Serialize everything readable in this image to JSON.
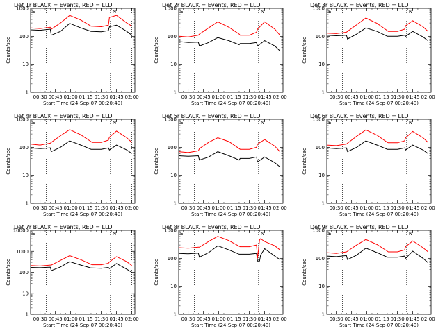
{
  "chart_data": [
    {
      "type": "line",
      "title": "Det 1r BLACK = Events, RED = LLD",
      "xlabel": "Start Time (24-Sep-07 00:20:40)",
      "ylabel": "Counts/sec",
      "yscale": "log",
      "ylim": [
        1,
        1000
      ],
      "ytick_labels": [
        "1",
        "10",
        "100",
        "1000"
      ],
      "x_tick_labels": [
        "00:30",
        "00:45",
        "01:00",
        "01:15",
        "01:30",
        "01:45",
        "02:00"
      ],
      "marker_labels": [
        "E",
        "N"
      ],
      "series": [
        {
          "color": "#000000",
          "x": [
            "00:20",
            "00:30",
            "00:40",
            "00:41",
            "00:50",
            "00:59",
            "01:10",
            "01:20",
            "01:21",
            "01:30",
            "01:37",
            "01:38",
            "01:45",
            "01:55",
            "02:00"
          ],
          "values": [
            170,
            165,
            180,
            110,
            150,
            290,
            200,
            150,
            150,
            145,
            160,
            220,
            250,
            150,
            110
          ]
        },
        {
          "color": "#ff0000",
          "x": [
            "00:20",
            "00:30",
            "00:40",
            "00:41",
            "00:50",
            "00:59",
            "01:10",
            "01:20",
            "01:21",
            "01:30",
            "01:37",
            "01:38",
            "01:45",
            "01:55",
            "02:00"
          ],
          "values": [
            200,
            190,
            210,
            180,
            300,
            560,
            380,
            230,
            230,
            220,
            250,
            470,
            560,
            300,
            230
          ]
        }
      ]
    },
    {
      "type": "line",
      "title": "Det 2r BLACK = Events, RED = LLD",
      "xlabel": "Start Time (24-Sep-07 00:20:40)",
      "ylabel": "Counts/sec",
      "yscale": "log",
      "ylim": [
        1,
        1000
      ],
      "ytick_labels": [
        "1",
        "10",
        "100",
        "1000"
      ],
      "x_tick_labels": [
        "00:30",
        "00:45",
        "01:00",
        "01:15",
        "01:30",
        "01:45",
        "02:00"
      ],
      "marker_labels": [
        "E",
        "N"
      ],
      "series": [
        {
          "color": "#000000",
          "x": [
            "00:20",
            "00:30",
            "00:40",
            "00:41",
            "00:50",
            "00:59",
            "01:10",
            "01:20",
            "01:21",
            "01:30",
            "01:37",
            "01:38",
            "01:45",
            "01:55",
            "02:00"
          ],
          "values": [
            65,
            60,
            62,
            45,
            60,
            90,
            70,
            50,
            55,
            55,
            60,
            45,
            70,
            45,
            30
          ]
        },
        {
          "color": "#ff0000",
          "x": [
            "00:20",
            "00:30",
            "00:40",
            "00:41",
            "00:50",
            "00:59",
            "01:10",
            "01:20",
            "01:21",
            "01:30",
            "01:37",
            "01:38",
            "01:45",
            "01:55",
            "02:00"
          ],
          "values": [
            100,
            95,
            110,
            120,
            200,
            330,
            210,
            120,
            110,
            110,
            140,
            180,
            330,
            180,
            110
          ]
        }
      ]
    },
    {
      "type": "line",
      "title": "Det 3r BLACK = Events, RED = LLD",
      "xlabel": "Start Time (24-Sep-07 00:20:40)",
      "ylabel": "Counts/sec",
      "yscale": "log",
      "ylim": [
        1,
        1000
      ],
      "ytick_labels": [
        "1",
        "10",
        "100",
        "1000"
      ],
      "x_tick_labels": [
        "00:30",
        "00:45",
        "01:00",
        "01:15",
        "01:30",
        "01:45",
        "02:00"
      ],
      "marker_labels": [
        "E",
        "N"
      ],
      "series": [
        {
          "color": "#000000",
          "x": [
            "00:20",
            "00:30",
            "00:40",
            "00:41",
            "00:50",
            "00:59",
            "01:10",
            "01:20",
            "01:21",
            "01:30",
            "01:37",
            "01:38",
            "01:45",
            "01:55",
            "02:00"
          ],
          "values": [
            110,
            105,
            110,
            80,
            120,
            200,
            150,
            100,
            100,
            100,
            110,
            100,
            150,
            95,
            70
          ]
        },
        {
          "color": "#ff0000",
          "x": [
            "00:20",
            "00:30",
            "00:40",
            "00:41",
            "00:50",
            "00:59",
            "01:10",
            "01:20",
            "01:21",
            "01:30",
            "01:37",
            "01:38",
            "01:45",
            "01:55",
            "02:00"
          ],
          "values": [
            130,
            125,
            140,
            150,
            260,
            450,
            290,
            160,
            150,
            150,
            180,
            240,
            360,
            220,
            150
          ]
        }
      ]
    },
    {
      "type": "line",
      "title": "Det 4r BLACK = Events, RED = LLD",
      "xlabel": "Start Time (24-Sep-07 00:20:40)",
      "ylabel": "Counts/sec",
      "yscale": "log",
      "ylim": [
        1,
        1000
      ],
      "ytick_labels": [
        "1",
        "10",
        "100",
        "1000"
      ],
      "x_tick_labels": [
        "00:30",
        "00:45",
        "01:00",
        "01:15",
        "01:30",
        "01:45",
        "02:00"
      ],
      "marker_labels": [
        "E",
        "N"
      ],
      "series": [
        {
          "color": "#000000",
          "x": [
            "00:20",
            "00:30",
            "00:40",
            "00:41",
            "00:50",
            "00:59",
            "01:10",
            "01:20",
            "01:21",
            "01:30",
            "01:37",
            "01:38",
            "01:45",
            "01:55",
            "02:00"
          ],
          "values": [
            95,
            90,
            95,
            70,
            100,
            170,
            120,
            85,
            85,
            85,
            95,
            80,
            120,
            80,
            60
          ]
        },
        {
          "color": "#ff0000",
          "x": [
            "00:20",
            "00:30",
            "00:40",
            "00:41",
            "00:50",
            "00:59",
            "01:10",
            "01:20",
            "01:21",
            "01:30",
            "01:37",
            "01:38",
            "01:45",
            "01:55",
            "02:00"
          ],
          "values": [
            130,
            120,
            140,
            150,
            260,
            430,
            280,
            160,
            150,
            150,
            180,
            230,
            380,
            220,
            150
          ]
        }
      ]
    },
    {
      "type": "line",
      "title": "Det 5r BLACK = Events, RED = LLD",
      "xlabel": "Start Time (24-Sep-07 00:20:40)",
      "ylabel": "Counts/sec",
      "yscale": "log",
      "ylim": [
        1,
        1000
      ],
      "ytick_labels": [
        "1",
        "10",
        "100",
        "1000"
      ],
      "x_tick_labels": [
        "00:30",
        "00:45",
        "01:00",
        "01:15",
        "01:30",
        "01:45",
        "02:00"
      ],
      "marker_labels": [
        "E",
        "N"
      ],
      "series": [
        {
          "color": "#000000",
          "x": [
            "00:20",
            "00:30",
            "00:40",
            "00:41",
            "00:50",
            "00:59",
            "01:10",
            "01:20",
            "01:21",
            "01:30",
            "01:37",
            "01:38",
            "01:45",
            "01:55",
            "02:00"
          ],
          "values": [
            50,
            48,
            50,
            35,
            45,
            70,
            50,
            35,
            40,
            40,
            45,
            30,
            45,
            28,
            20
          ]
        },
        {
          "color": "#ff0000",
          "x": [
            "00:20",
            "00:30",
            "00:40",
            "00:41",
            "00:50",
            "00:59",
            "01:10",
            "01:20",
            "01:21",
            "01:30",
            "01:37",
            "01:38",
            "01:45",
            "01:55",
            "02:00"
          ],
          "values": [
            70,
            65,
            75,
            90,
            150,
            220,
            160,
            90,
            85,
            85,
            100,
            130,
            190,
            110,
            70
          ]
        }
      ]
    },
    {
      "type": "line",
      "title": "Det 6r BLACK = Events, RED = LLD",
      "xlabel": "Start Time (24-Sep-07 00:20:40)",
      "ylabel": "Counts/sec",
      "yscale": "log",
      "ylim": [
        1,
        1000
      ],
      "ytick_labels": [
        "1",
        "10",
        "100",
        "1000"
      ],
      "x_tick_labels": [
        "00:30",
        "00:45",
        "01:00",
        "01:15",
        "01:30",
        "01:45",
        "02:00"
      ],
      "marker_labels": [
        "E",
        "N"
      ],
      "series": [
        {
          "color": "#000000",
          "x": [
            "00:20",
            "00:30",
            "00:40",
            "00:41",
            "00:50",
            "00:59",
            "01:10",
            "01:20",
            "01:21",
            "01:30",
            "01:37",
            "01:38",
            "01:45",
            "01:55",
            "02:00"
          ],
          "values": [
            95,
            90,
            95,
            70,
            100,
            170,
            120,
            85,
            85,
            85,
            95,
            80,
            120,
            80,
            60
          ]
        },
        {
          "color": "#ff0000",
          "x": [
            "00:20",
            "00:30",
            "00:40",
            "00:41",
            "00:50",
            "00:59",
            "01:10",
            "01:20",
            "01:21",
            "01:30",
            "01:37",
            "01:38",
            "01:45",
            "01:55",
            "02:00"
          ],
          "values": [
            120,
            115,
            130,
            140,
            250,
            420,
            270,
            150,
            145,
            145,
            170,
            220,
            370,
            220,
            150
          ]
        }
      ]
    },
    {
      "type": "line",
      "title": "Det 7r BLACK = Events, RED = LLD",
      "xlabel": "Start Time (24-Sep-07 00:20:40)",
      "ylabel": "Counts/sec",
      "yscale": "log",
      "ylim": [
        1,
        10000
      ],
      "ytick_labels": [
        "1",
        "10",
        "100",
        "1000",
        "10000"
      ],
      "x_tick_labels": [
        "00:30",
        "00:45",
        "01:00",
        "01:15",
        "01:30",
        "01:45",
        "02:00"
      ],
      "marker_labels": [
        "E",
        "N"
      ],
      "series": [
        {
          "color": "#000000",
          "x": [
            "00:20",
            "00:30",
            "00:40",
            "00:41",
            "00:50",
            "00:59",
            "01:10",
            "01:20",
            "01:21",
            "01:30",
            "01:37",
            "01:38",
            "01:45",
            "01:55",
            "02:00"
          ],
          "values": [
            170,
            165,
            175,
            120,
            180,
            320,
            220,
            160,
            160,
            155,
            170,
            150,
            260,
            140,
            100
          ]
        },
        {
          "color": "#ff0000",
          "x": [
            "00:20",
            "00:30",
            "00:40",
            "00:41",
            "00:50",
            "00:59",
            "01:10",
            "01:20",
            "01:21",
            "01:30",
            "01:37",
            "01:38",
            "01:45",
            "01:55",
            "02:00"
          ],
          "values": [
            210,
            200,
            220,
            220,
            370,
            620,
            400,
            240,
            230,
            230,
            270,
            310,
            560,
            320,
            210
          ]
        }
      ]
    },
    {
      "type": "line",
      "title": "Det 8r BLACK = Events, RED = LLD",
      "xlabel": "Start Time (24-Sep-07 00:20:40)",
      "ylabel": "Counts/sec",
      "yscale": "log",
      "ylim": [
        1,
        1000
      ],
      "ytick_labels": [
        "1",
        "10",
        "100",
        "1000"
      ],
      "x_tick_labels": [
        "00:30",
        "00:45",
        "01:00",
        "01:15",
        "01:30",
        "01:45",
        "02:00"
      ],
      "marker_labels": [
        "E",
        "N"
      ],
      "series": [
        {
          "color": "#000000",
          "x": [
            "00:20",
            "00:30",
            "00:40",
            "00:41",
            "00:50",
            "00:59",
            "01:10",
            "01:20",
            "01:21",
            "01:30",
            "01:37",
            "01:38",
            "01:40",
            "01:41",
            "01:45",
            "01:55",
            "02:00"
          ],
          "values": [
            150,
            145,
            155,
            110,
            160,
            280,
            200,
            140,
            140,
            140,
            150,
            80,
            80,
            130,
            220,
            120,
            90
          ]
        },
        {
          "color": "#ff0000",
          "x": [
            "00:20",
            "00:30",
            "00:40",
            "00:41",
            "00:50",
            "00:59",
            "01:10",
            "01:20",
            "01:21",
            "01:30",
            "01:37",
            "01:38",
            "01:40",
            "01:41",
            "01:45",
            "01:55",
            "02:00"
          ],
          "values": [
            240,
            230,
            250,
            250,
            400,
            610,
            430,
            270,
            260,
            260,
            300,
            100,
            450,
            500,
            400,
            280,
            200
          ]
        }
      ]
    },
    {
      "type": "line",
      "title": "Det 9r BLACK = Events, RED = LLD",
      "xlabel": "Start Time (24-Sep-07 00:20:40)",
      "ylabel": "Counts/sec",
      "yscale": "log",
      "ylim": [
        1,
        1000
      ],
      "ytick_labels": [
        "1",
        "10",
        "100",
        "1000"
      ],
      "x_tick_labels": [
        "00:30",
        "00:45",
        "01:00",
        "01:15",
        "01:30",
        "01:45",
        "02:00"
      ],
      "marker_labels": [
        "E",
        "N"
      ],
      "series": [
        {
          "color": "#000000",
          "x": [
            "00:20",
            "00:30",
            "00:40",
            "00:41",
            "00:50",
            "00:59",
            "01:10",
            "01:20",
            "01:21",
            "01:30",
            "01:37",
            "01:38",
            "01:45",
            "01:55",
            "02:00"
          ],
          "values": [
            120,
            115,
            125,
            90,
            130,
            230,
            160,
            110,
            110,
            110,
            120,
            100,
            180,
            100,
            70
          ]
        },
        {
          "color": "#ff0000",
          "x": [
            "00:20",
            "00:30",
            "00:40",
            "00:41",
            "00:50",
            "00:59",
            "01:10",
            "01:20",
            "01:21",
            "01:30",
            "01:37",
            "01:38",
            "01:45",
            "01:55",
            "02:00"
          ],
          "values": [
            160,
            150,
            170,
            180,
            300,
            470,
            310,
            180,
            170,
            170,
            200,
            260,
            420,
            240,
            170
          ]
        }
      ]
    }
  ]
}
